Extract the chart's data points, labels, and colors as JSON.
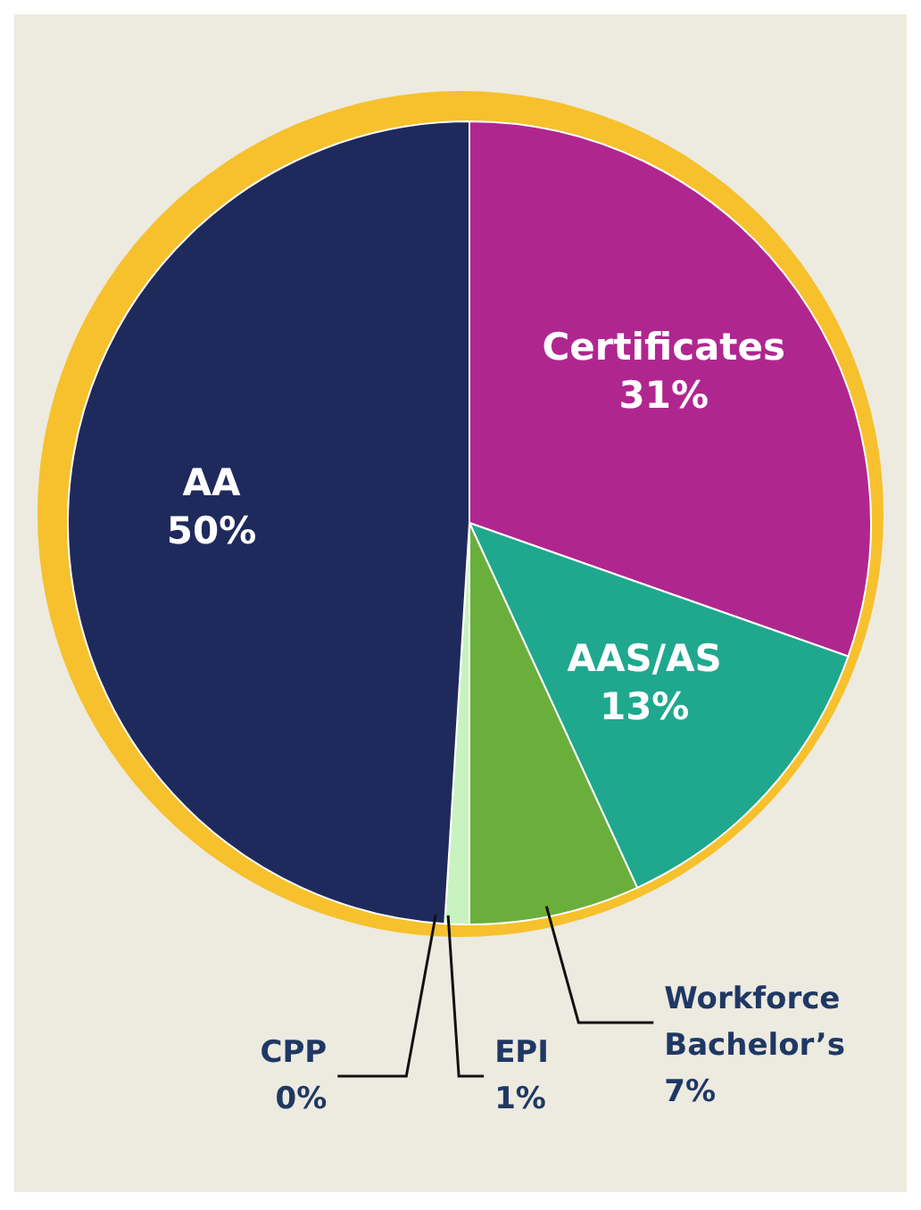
{
  "chart_data": {
    "type": "pie",
    "categories": [
      "Certificates",
      "AAS/AS",
      "Workforce Bachelor’s",
      "EPI",
      "CPP",
      "AA"
    ],
    "values": [
      31,
      13,
      7,
      1,
      0,
      50
    ],
    "value_labels": [
      "31%",
      "13%",
      "7%",
      "1%",
      "0%",
      "50%"
    ],
    "colors": [
      "#b0268f",
      "#1fa88e",
      "#6aaf3c",
      "#c8f2c0",
      "#ffffff",
      "#1f2a5c"
    ],
    "legend": false
  }
}
